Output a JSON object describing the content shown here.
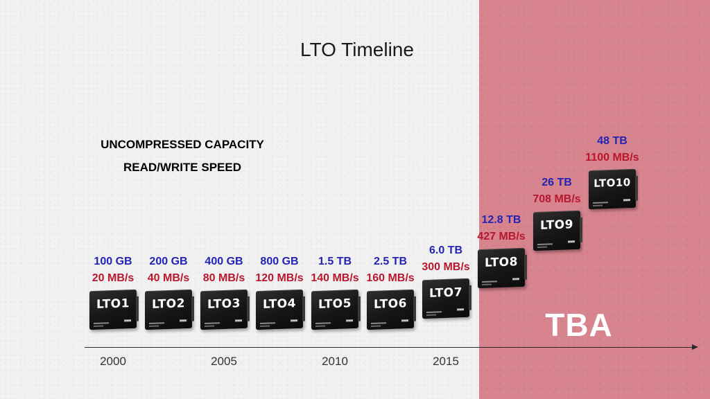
{
  "slide": {
    "title": "LTO Timeline",
    "tba_label": "TBA",
    "legend": {
      "capacity_label": "UNCOMPRESSED CAPACITY",
      "speed_label": "READ/WRITE SPEED"
    }
  },
  "colors": {
    "capacity": "#2323b4",
    "speed": "#b8172d",
    "tba_region": "#d7848e",
    "background": "#f1f1f2",
    "tape_body": "#161616"
  },
  "chart_data": {
    "type": "scatter",
    "x_axis": {
      "ticks": [
        "2000",
        "2005",
        "2010",
        "2015"
      ],
      "arrow": true
    },
    "series": [
      {
        "name": "UNCOMPRESSED CAPACITY",
        "capacity_tb": [
          0.1,
          0.2,
          0.4,
          0.8,
          1.5,
          2.5,
          6.0,
          12.8,
          26,
          48
        ],
        "labels": [
          "100 GB",
          "200 GB",
          "400 GB",
          "800 GB",
          "1.5 TB",
          "2.5 TB",
          "6.0 TB",
          "12.8 TB",
          "26 TB",
          "48 TB"
        ]
      },
      {
        "name": "READ/WRITE SPEED",
        "speed_mbs": [
          20,
          40,
          80,
          120,
          140,
          160,
          300,
          427,
          708,
          1100
        ],
        "labels": [
          "20 MB/s",
          "40 MB/s",
          "80 MB/s",
          "120 MB/s",
          "140 MB/s",
          "160 MB/s",
          "300 MB/s",
          "427 MB/s",
          "708 MB/s",
          "1100 MB/s"
        ]
      }
    ],
    "generations": [
      {
        "name": "LTO1",
        "capacity": "100 GB",
        "speed": "20 MB/s",
        "year": 2000
      },
      {
        "name": "LTO2",
        "capacity": "200 GB",
        "speed": "40 MB/s",
        "year": 2002.5
      },
      {
        "name": "LTO3",
        "capacity": "400 GB",
        "speed": "80 MB/s",
        "year": 2005
      },
      {
        "name": "LTO4",
        "capacity": "800 GB",
        "speed": "120 MB/s",
        "year": 2007.5
      },
      {
        "name": "LTO5",
        "capacity": "1.5 TB",
        "speed": "140 MB/s",
        "year": 2010
      },
      {
        "name": "LTO6",
        "capacity": "2.5 TB",
        "speed": "160 MB/s",
        "year": 2012.5
      },
      {
        "name": "LTO7",
        "capacity": "6.0 TB",
        "speed": "300 MB/s",
        "year": 2015
      },
      {
        "name": "LTO8",
        "capacity": "12.8 TB",
        "speed": "427 MB/s",
        "year": 2017.5,
        "tba": true
      },
      {
        "name": "LTO9",
        "capacity": "26 TB",
        "speed": "708 MB/s",
        "year": 2020,
        "tba": true
      },
      {
        "name": "LTO10",
        "capacity": "48 TB",
        "speed": "1100 MB/s",
        "year": 2022.5,
        "tba": true
      }
    ],
    "tba_start_year": 2016.5
  }
}
